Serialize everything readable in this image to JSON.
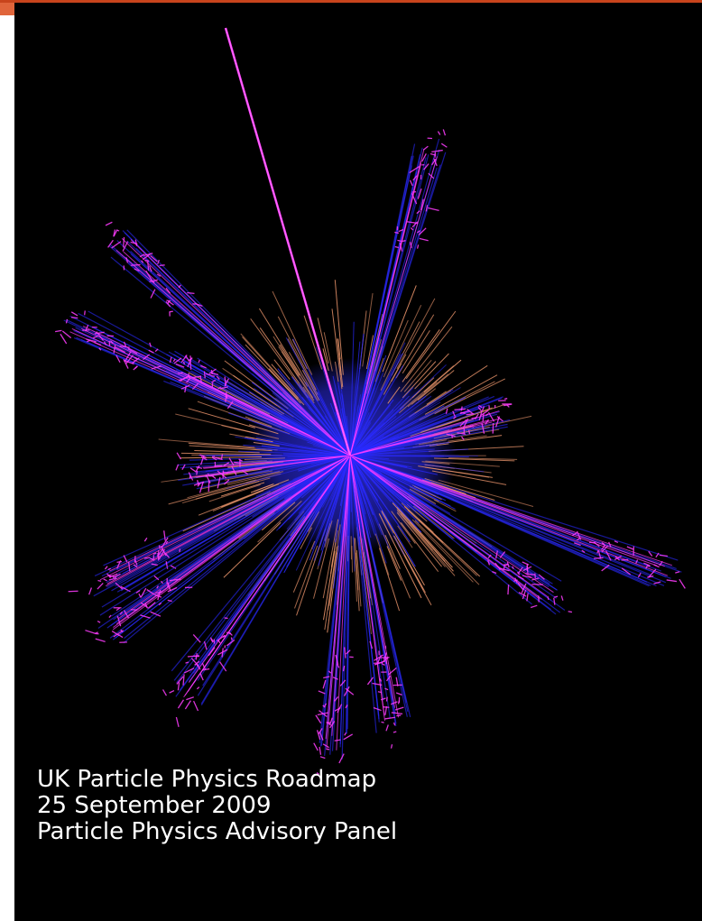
{
  "colors": {
    "top_bar": "#c8441c",
    "corner_mark": "#e0653b",
    "background": "#000000",
    "caption_text": "#ffffff",
    "track_blue": "#2a2aff",
    "track_magenta": "#ff3cff",
    "deposit_orange": "#e8936a",
    "core_blue": "#2b2be0"
  },
  "image": {
    "subject": "particle-collision-event-display"
  },
  "caption": {
    "line1": "UK Particle Physics Roadmap",
    "line2": "25 September 2009",
    "line3": "Particle Physics Advisory Panel"
  }
}
